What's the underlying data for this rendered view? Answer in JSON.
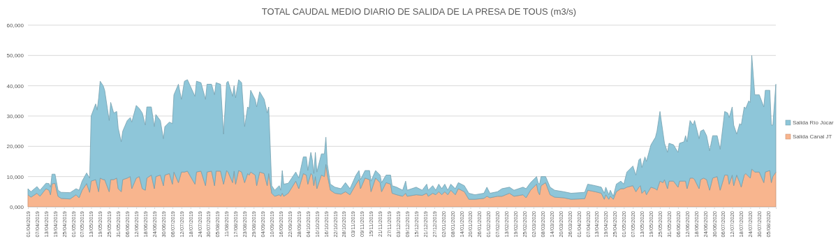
{
  "chart_data": {
    "type": "area",
    "title": "TOTAL CAUDAL MEDIO DIARIO DE SALIDA DE LA PRESA DE TOUS (m3/s)",
    "stacked": true,
    "grid": "y",
    "legend": "right",
    "xlim": [
      "2019-04-01",
      "2020-08-10"
    ],
    "ylim": [
      0,
      60000
    ],
    "yticks": [
      {
        "value": 0,
        "label": "0,000"
      },
      {
        "value": 10000,
        "label": "10,000"
      },
      {
        "value": 20000,
        "label": "20,000"
      },
      {
        "value": 30000,
        "label": "30,000"
      },
      {
        "value": 40000,
        "label": "40,000"
      },
      {
        "value": 50000,
        "label": "50,000"
      },
      {
        "value": 60000,
        "label": "60,000"
      }
    ],
    "xticks": [
      {
        "value": "2019-04-01",
        "label": "01/04/2019"
      },
      {
        "value": "2019-04-07",
        "label": "07/04/2019"
      },
      {
        "value": "2019-04-13",
        "label": "13/04/2019"
      },
      {
        "value": "2019-04-19",
        "label": "19/04/2019"
      },
      {
        "value": "2019-04-25",
        "label": "25/04/2019"
      },
      {
        "value": "2019-05-01",
        "label": "01/05/2019"
      },
      {
        "value": "2019-05-07",
        "label": "07/05/2019"
      },
      {
        "value": "2019-05-13",
        "label": "13/05/2019"
      },
      {
        "value": "2019-05-19",
        "label": "19/05/2019"
      },
      {
        "value": "2019-05-25",
        "label": "25/05/2019"
      },
      {
        "value": "2019-05-31",
        "label": "31/05/2019"
      },
      {
        "value": "2019-06-06",
        "label": "06/06/2019"
      },
      {
        "value": "2019-06-12",
        "label": "12/06/2019"
      },
      {
        "value": "2019-06-18",
        "label": "18/06/2019"
      },
      {
        "value": "2019-06-24",
        "label": "24/06/2019"
      },
      {
        "value": "2019-06-30",
        "label": "30/06/2019"
      },
      {
        "value": "2019-07-06",
        "label": "06/07/2019"
      },
      {
        "value": "2019-07-12",
        "label": "12/07/2019"
      },
      {
        "value": "2019-07-18",
        "label": "18/07/2019"
      },
      {
        "value": "2019-07-24",
        "label": "24/07/2019"
      },
      {
        "value": "2019-07-30",
        "label": "30/07/2019"
      },
      {
        "value": "2019-08-05",
        "label": "05/08/2019"
      },
      {
        "value": "2019-08-11",
        "label": "11/08/2019"
      },
      {
        "value": "2019-08-17",
        "label": "17/08/2019"
      },
      {
        "value": "2019-08-23",
        "label": "23/08/2019"
      },
      {
        "value": "2019-08-29",
        "label": "29/08/2019"
      },
      {
        "value": "2019-09-04",
        "label": "04/09/2019"
      },
      {
        "value": "2019-09-10",
        "label": "10/09/2019"
      },
      {
        "value": "2019-09-16",
        "label": "16/09/2019"
      },
      {
        "value": "2019-09-22",
        "label": "22/09/2019"
      },
      {
        "value": "2019-09-28",
        "label": "28/09/2019"
      },
      {
        "value": "2019-10-04",
        "label": "04/10/2019"
      },
      {
        "value": "2019-10-10",
        "label": "10/10/2019"
      },
      {
        "value": "2019-10-16",
        "label": "16/10/2019"
      },
      {
        "value": "2019-10-22",
        "label": "22/10/2019"
      },
      {
        "value": "2019-10-28",
        "label": "28/10/2019"
      },
      {
        "value": "2019-11-03",
        "label": "03/11/2019"
      },
      {
        "value": "2019-11-09",
        "label": "09/11/2019"
      },
      {
        "value": "2019-11-15",
        "label": "15/11/2019"
      },
      {
        "value": "2019-11-21",
        "label": "21/11/2019"
      },
      {
        "value": "2019-11-27",
        "label": "27/11/2019"
      },
      {
        "value": "2019-12-03",
        "label": "03/12/2019"
      },
      {
        "value": "2019-12-09",
        "label": "09/12/2019"
      },
      {
        "value": "2019-12-15",
        "label": "15/12/2019"
      },
      {
        "value": "2019-12-21",
        "label": "21/12/2019"
      },
      {
        "value": "2019-12-27",
        "label": "27/12/2019"
      },
      {
        "value": "2020-01-02",
        "label": "02/01/2020"
      },
      {
        "value": "2020-01-08",
        "label": "08/01/2020"
      },
      {
        "value": "2020-01-14",
        "label": "14/01/2020"
      },
      {
        "value": "2020-01-20",
        "label": "20/01/2020"
      },
      {
        "value": "2020-01-26",
        "label": "26/01/2020"
      },
      {
        "value": "2020-02-01",
        "label": "01/02/2020"
      },
      {
        "value": "2020-02-07",
        "label": "07/02/2020"
      },
      {
        "value": "2020-02-13",
        "label": "13/02/2020"
      },
      {
        "value": "2020-02-19",
        "label": "19/02/2020"
      },
      {
        "value": "2020-02-25",
        "label": "25/02/2020"
      },
      {
        "value": "2020-03-02",
        "label": "02/03/2020"
      },
      {
        "value": "2020-03-08",
        "label": "08/03/2020"
      },
      {
        "value": "2020-03-14",
        "label": "14/03/2020"
      },
      {
        "value": "2020-03-20",
        "label": "20/03/2020"
      },
      {
        "value": "2020-03-26",
        "label": "26/03/2020"
      },
      {
        "value": "2020-04-01",
        "label": "01/04/2020"
      },
      {
        "value": "2020-04-07",
        "label": "07/04/2020"
      },
      {
        "value": "2020-04-13",
        "label": "13/04/2020"
      },
      {
        "value": "2020-04-19",
        "label": "19/04/2020"
      },
      {
        "value": "2020-04-25",
        "label": "25/04/2020"
      },
      {
        "value": "2020-05-01",
        "label": "01/05/2020"
      },
      {
        "value": "2020-05-07",
        "label": "07/05/2020"
      },
      {
        "value": "2020-05-13",
        "label": "13/05/2020"
      },
      {
        "value": "2020-05-19",
        "label": "19/05/2020"
      },
      {
        "value": "2020-05-25",
        "label": "25/05/2020"
      },
      {
        "value": "2020-05-31",
        "label": "31/05/2020"
      },
      {
        "value": "2020-06-06",
        "label": "06/06/2020"
      },
      {
        "value": "2020-06-12",
        "label": "12/06/2020"
      },
      {
        "value": "2020-06-18",
        "label": "18/06/2020"
      },
      {
        "value": "2020-06-24",
        "label": "24/06/2020"
      },
      {
        "value": "2020-06-30",
        "label": "30/06/2020"
      },
      {
        "value": "2020-07-06",
        "label": "06/07/2020"
      },
      {
        "value": "2020-07-12",
        "label": "12/07/2020"
      },
      {
        "value": "2020-07-18",
        "label": "18/07/2020"
      },
      {
        "value": "2020-07-24",
        "label": "24/07/2020"
      },
      {
        "value": "2020-07-30",
        "label": "30/07/2020"
      },
      {
        "value": "2020-08-05",
        "label": "05/08/2020"
      }
    ],
    "x": [
      "2019-04-01",
      "2019-04-03",
      "2019-04-07",
      "2019-04-09",
      "2019-04-13",
      "2019-04-15",
      "2019-04-16",
      "2019-04-17",
      "2019-04-19",
      "2019-04-21",
      "2019-04-23",
      "2019-04-29",
      "2019-05-03",
      "2019-05-05",
      "2019-05-07",
      "2019-05-10",
      "2019-05-12",
      "2019-05-13",
      "2019-05-16",
      "2019-05-17",
      "2019-05-18",
      "2019-05-19",
      "2019-05-21",
      "2019-05-22",
      "2019-05-25",
      "2019-05-26",
      "2019-05-28",
      "2019-05-30",
      "2019-05-31",
      "2019-06-02",
      "2019-06-03",
      "2019-06-06",
      "2019-06-08",
      "2019-06-09",
      "2019-06-12",
      "2019-06-14",
      "2019-06-16",
      "2019-06-18",
      "2019-06-19",
      "2019-06-22",
      "2019-06-24",
      "2019-06-25",
      "2019-06-28",
      "2019-06-30",
      "2019-07-01",
      "2019-07-04",
      "2019-07-06",
      "2019-07-07",
      "2019-07-10",
      "2019-07-12",
      "2019-07-14",
      "2019-07-16",
      "2019-07-21",
      "2019-07-22",
      "2019-07-25",
      "2019-07-28",
      "2019-07-29",
      "2019-08-01",
      "2019-08-03",
      "2019-08-04",
      "2019-08-07",
      "2019-08-09",
      "2019-08-11",
      "2019-08-12",
      "2019-08-15",
      "2019-08-16",
      "2019-08-17",
      "2019-08-19",
      "2019-08-21",
      "2019-08-23",
      "2019-08-25",
      "2019-08-26",
      "2019-08-27",
      "2019-08-30",
      "2019-08-31",
      "2019-09-02",
      "2019-09-05",
      "2019-09-07",
      "2019-09-08",
      "2019-09-10",
      "2019-09-12",
      "2019-09-15",
      "2019-09-16",
      "2019-09-17",
      "2019-09-18",
      "2019-09-21",
      "2019-09-26",
      "2019-09-28",
      "2019-10-01",
      "2019-10-03",
      "2019-10-04",
      "2019-10-06",
      "2019-10-07",
      "2019-10-08",
      "2019-10-09",
      "2019-10-10",
      "2019-10-13",
      "2019-10-15",
      "2019-10-16",
      "2019-10-17",
      "2019-10-19",
      "2019-10-22",
      "2019-10-26",
      "2019-10-29",
      "2019-11-01",
      "2019-11-05",
      "2019-11-07",
      "2019-11-08",
      "2019-11-11",
      "2019-11-14",
      "2019-11-15",
      "2019-11-18",
      "2019-11-21",
      "2019-11-22",
      "2019-11-25",
      "2019-11-28",
      "2019-11-29",
      "2019-12-02",
      "2019-12-06",
      "2019-12-08",
      "2019-12-09",
      "2019-12-15",
      "2019-12-19",
      "2019-12-22",
      "2019-12-23",
      "2019-12-26",
      "2019-12-28",
      "2019-12-30",
      "2020-01-01",
      "2020-01-03",
      "2020-01-05",
      "2020-01-07",
      "2020-01-10",
      "2020-01-12",
      "2020-01-16",
      "2020-01-19",
      "2020-01-23",
      "2020-01-29",
      "2020-01-31",
      "2020-02-02",
      "2020-02-07",
      "2020-02-10",
      "2020-02-15",
      "2020-02-18",
      "2020-02-24",
      "2020-02-26",
      "2020-02-29",
      "2020-03-04",
      "2020-03-05",
      "2020-03-06",
      "2020-03-07",
      "2020-03-10",
      "2020-03-13",
      "2020-03-16",
      "2020-03-22",
      "2020-03-27",
      "2020-04-05",
      "2020-04-07",
      "2020-04-12",
      "2020-04-16",
      "2020-04-18",
      "2020-04-19",
      "2020-04-21",
      "2020-04-22",
      "2020-04-24",
      "2020-04-26",
      "2020-04-29",
      "2020-05-01",
      "2020-05-03",
      "2020-05-07",
      "2020-05-09",
      "2020-05-11",
      "2020-05-12",
      "2020-05-13",
      "2020-05-15",
      "2020-05-16",
      "2020-05-19",
      "2020-05-22",
      "2020-05-23",
      "2020-05-25",
      "2020-05-27",
      "2020-05-28",
      "2020-05-30",
      "2020-05-31",
      "2020-06-03",
      "2020-06-06",
      "2020-06-07",
      "2020-06-10",
      "2020-06-11",
      "2020-06-12",
      "2020-06-14",
      "2020-06-16",
      "2020-06-17",
      "2020-06-20",
      "2020-06-21",
      "2020-06-23",
      "2020-06-25",
      "2020-06-27",
      "2020-06-29",
      "2020-07-02",
      "2020-07-04",
      "2020-07-07",
      "2020-07-09",
      "2020-07-10",
      "2020-07-12",
      "2020-07-13",
      "2020-07-15",
      "2020-07-17",
      "2020-07-18",
      "2020-07-20",
      "2020-07-21",
      "2020-07-23",
      "2020-07-24",
      "2020-07-25",
      "2020-07-27",
      "2020-07-30",
      "2020-08-02",
      "2020-08-03",
      "2020-08-06",
      "2020-08-07",
      "2020-08-08",
      "2020-08-10"
    ],
    "series": [
      {
        "name": "Salida Canal JT",
        "color": "#f8b58e",
        "values": [
          4000,
          3200,
          4500,
          3500,
          6000,
          5500,
          4000,
          7600,
          7800,
          3500,
          2800,
          2600,
          4000,
          3000,
          5500,
          7700,
          4800,
          8500,
          9000,
          7000,
          5000,
          9500,
          9000,
          9000,
          5000,
          9000,
          9000,
          9500,
          6000,
          5000,
          9000,
          9500,
          10000,
          6000,
          9500,
          10000,
          6000,
          5500,
          9500,
          10500,
          6000,
          10000,
          10500,
          7000,
          10500,
          11000,
          7500,
          11500,
          8000,
          11500,
          11500,
          11800,
          7500,
          11500,
          11800,
          7000,
          11500,
          11800,
          7000,
          11800,
          11800,
          7500,
          12000,
          11500,
          8000,
          11800,
          7500,
          12000,
          11500,
          8000,
          11000,
          10500,
          11500,
          10500,
          7000,
          11500,
          11000,
          7000,
          11000,
          4500,
          3500,
          4000,
          3500,
          4500,
          3500,
          4500,
          8500,
          6000,
          11000,
          10500,
          7500,
          11000,
          10500,
          7000,
          10000,
          6000,
          10500,
          10000,
          14000,
          10500,
          5500,
          4500,
          4200,
          5000,
          4000,
          7500,
          9000,
          6000,
          9500,
          9000,
          5000,
          9500,
          8000,
          5000,
          8000,
          7500,
          4500,
          4000,
          3500,
          4500,
          3500,
          4000,
          3800,
          4500,
          3500,
          4500,
          4000,
          5000,
          4000,
          5000,
          4000,
          5500,
          4000,
          6000,
          5000,
          2500,
          2500,
          2800,
          3500,
          3000,
          3500,
          3500,
          4500,
          3500,
          4000,
          3000,
          5500,
          7500,
          5000,
          4000,
          7000,
          8000,
          4000,
          3200,
          3000,
          2500,
          2700,
          5500,
          5000,
          4500,
          2500,
          4000,
          2500,
          3500,
          2500,
          5000,
          6000,
          6000,
          6500,
          7000,
          5000,
          6500,
          7000,
          4500,
          5500,
          4000,
          6500,
          6000,
          5500,
          8500,
          8000,
          9000,
          6000,
          8500,
          8500,
          6500,
          8500,
          8500,
          8500,
          6000,
          9500,
          9500,
          9000,
          6000,
          9000,
          9500,
          9000,
          5500,
          9500,
          10000,
          5500,
          10500,
          10500,
          7500,
          10500,
          7000,
          10500,
          8000,
          6500,
          10500,
          11000,
          10000,
          9500,
          12500,
          11500,
          11500,
          8000,
          11500,
          12000,
          8000,
          10000,
          11500
        ]
      },
      {
        "name": "Salida Río Júcar",
        "color": "#8ec6d9",
        "values": [
          2000,
          1800,
          2200,
          2000,
          1800,
          2200,
          2500,
          3200,
          3000,
          2000,
          2000,
          2100,
          2000,
          2500,
          3000,
          3500,
          4700,
          21500,
          25000,
          25000,
          31000,
          32000,
          31000,
          29500,
          23500,
          25500,
          22000,
          22000,
          20000,
          16500,
          16000,
          19000,
          19500,
          22000,
          24000,
          22500,
          25000,
          21500,
          23500,
          22500,
          20500,
          20500,
          18000,
          15500,
          16000,
          17000,
          20000,
          25500,
          32500,
          24000,
          30000,
          30200,
          29000,
          30000,
          29200,
          28500,
          29000,
          28700,
          30000,
          29200,
          28700,
          16500,
          29000,
          30000,
          28500,
          28200,
          28500,
          30000,
          29500,
          18500,
          22000,
          22000,
          27000,
          25000,
          26000,
          26500,
          24500,
          24000,
          22000,
          2500,
          2000,
          3000,
          2000,
          7500,
          4000,
          3300,
          3000,
          3500,
          5500,
          6000,
          4500,
          7000,
          5000,
          4000,
          8000,
          5500,
          7000,
          7500,
          9000,
          3500,
          2000,
          2000,
          1800,
          3000,
          2000,
          3000,
          3000,
          3000,
          2500,
          3000,
          3500,
          2500,
          2500,
          3000,
          2500,
          3000,
          2500,
          2500,
          2000,
          4000,
          2000,
          2500,
          1700,
          3000,
          2000,
          2500,
          1500,
          2500,
          2000,
          2500,
          1500,
          2000,
          2000,
          2000,
          2000,
          2000,
          1500,
          1700,
          3000,
          1500,
          1500,
          2500,
          2000,
          2000,
          2500,
          3000,
          2500,
          2500,
          3000,
          3500,
          3000,
          2000,
          2500,
          2300,
          2000,
          2000,
          2100,
          2000,
          2000,
          2000,
          2000,
          2500,
          1500,
          2000,
          1000,
          2500,
          2500,
          1500,
          5000,
          6500,
          5500,
          9000,
          9000,
          8500,
          11000,
          11000,
          14000,
          17000,
          19500,
          23000,
          16500,
          12000,
          12000,
          12500,
          12000,
          11500,
          12500,
          13000,
          15000,
          15500,
          19000,
          17500,
          19500,
          16500,
          16000,
          16000,
          14500,
          13000,
          14000,
          13500,
          13500,
          21000,
          20500,
          22000,
          22500,
          20000,
          13500,
          19500,
          20500,
          22500,
          21500,
          25000,
          25000,
          37500,
          25500,
          25500,
          25000,
          27000,
          26500,
          19000,
          17000,
          29000
        ]
      }
    ]
  }
}
